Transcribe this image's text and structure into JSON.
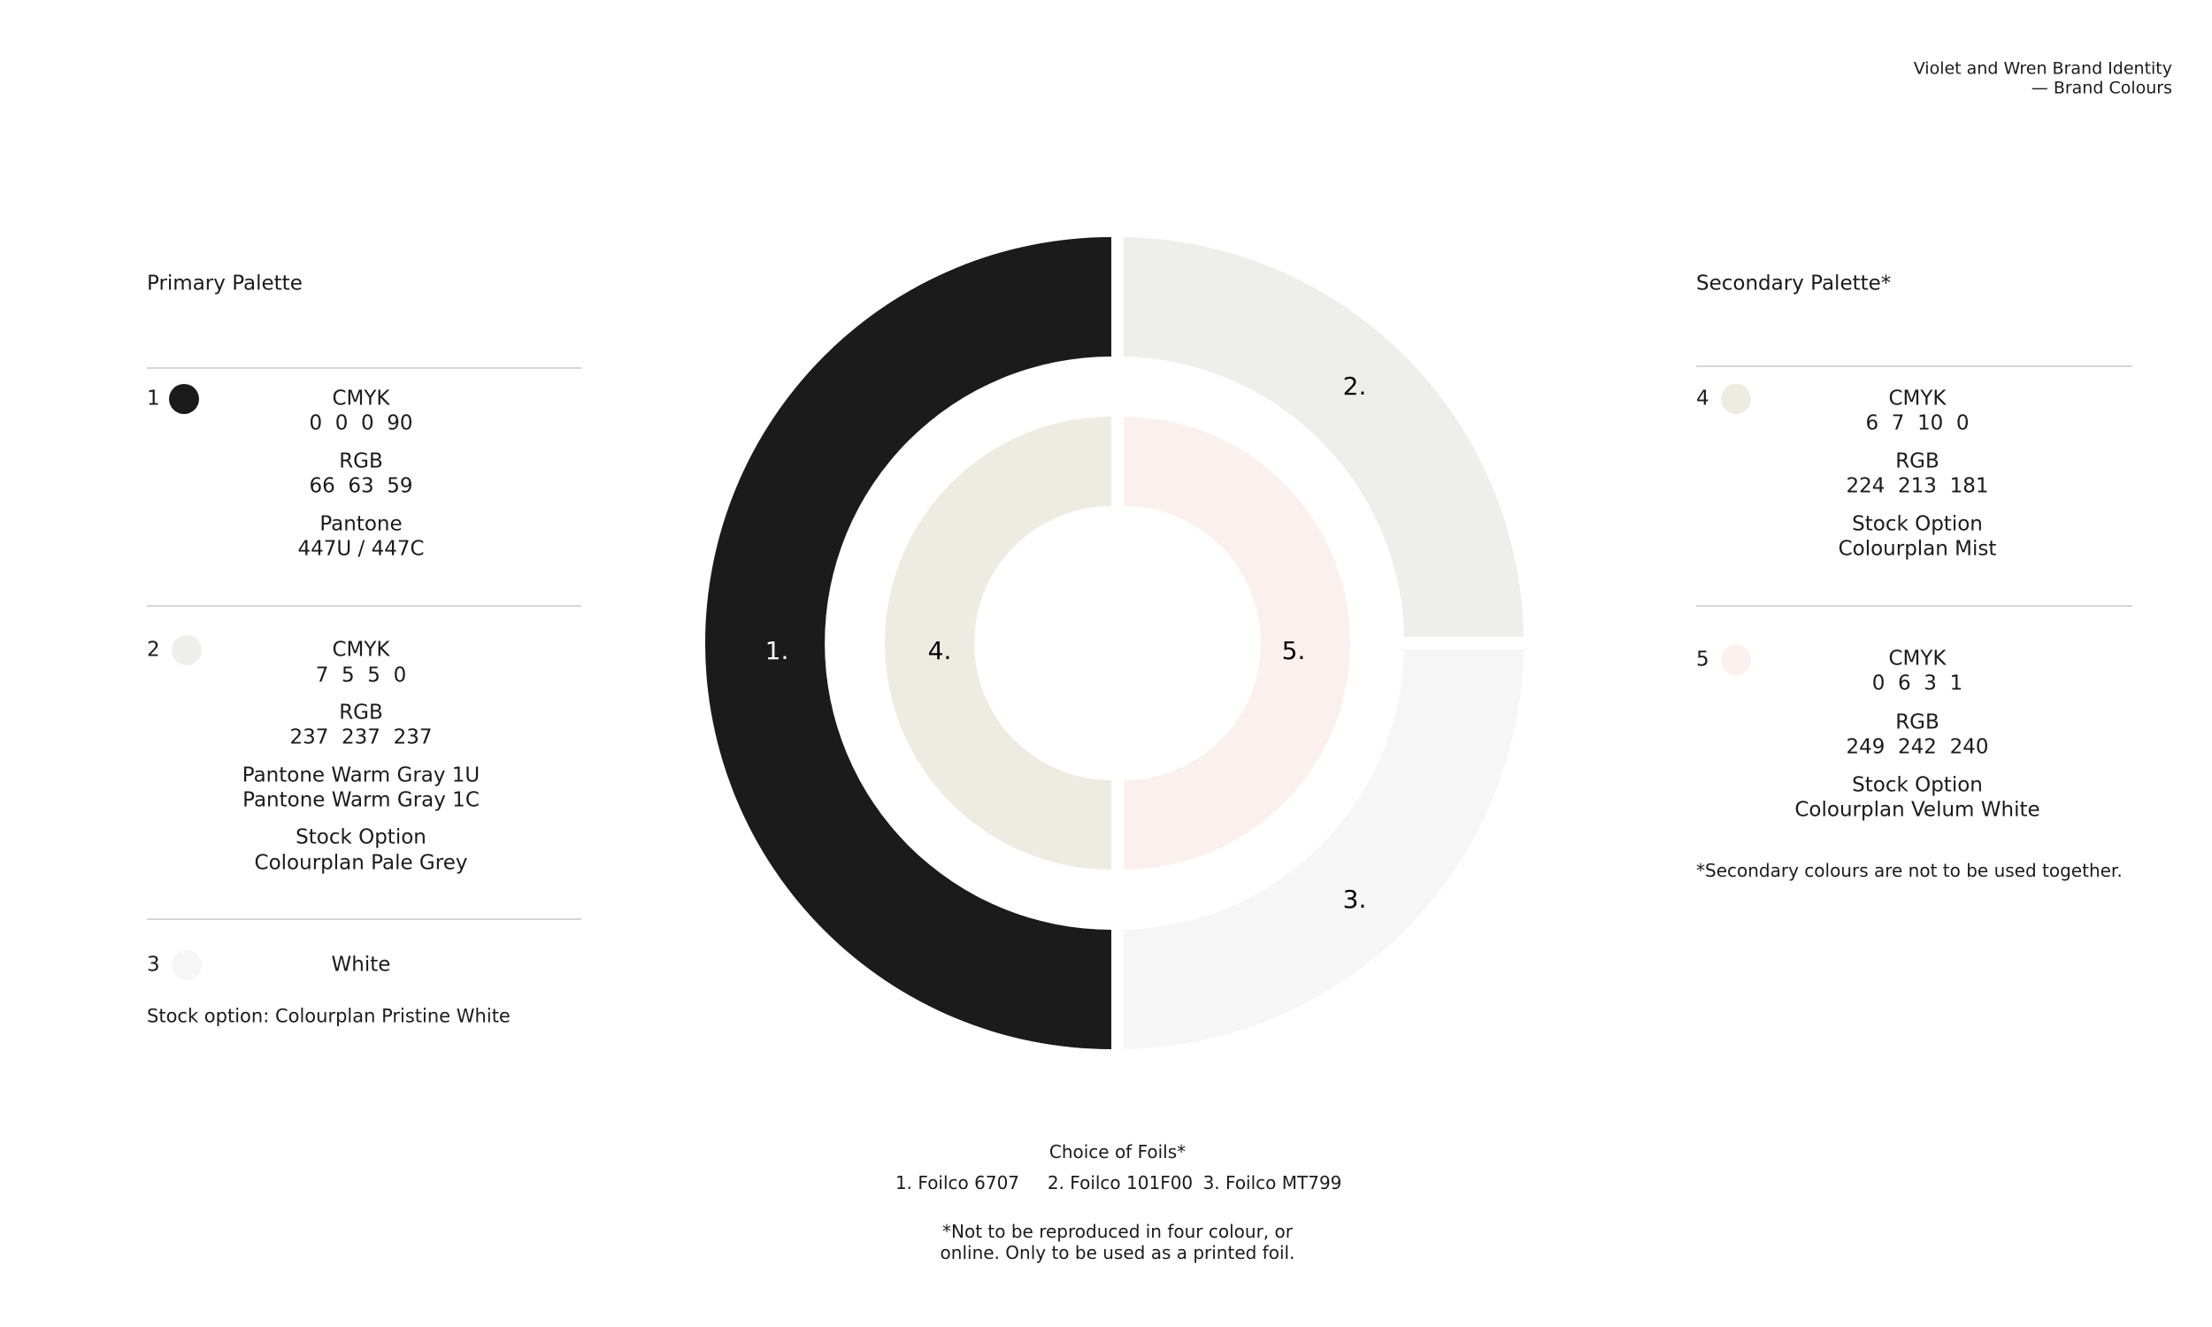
{
  "header": {
    "title": "Violet and Wren Brand Identity",
    "subtitle": "— Brand Colours"
  },
  "primary": {
    "title": "Primary Palette",
    "swatches": [
      {
        "number": "1",
        "lines": [
          "CMYK",
          "0  0  0  90",
          "RGB",
          "66  63  59",
          "Pantone",
          "447U / 447C"
        ]
      },
      {
        "number": "2",
        "lines": [
          "CMYK",
          "7  5  5  0",
          "RGB",
          "237  237  237",
          "Pantone Warm Gray 1U",
          "Pantone Warm Gray 1C",
          "Stock Option",
          "Colourplan Pale Grey"
        ]
      },
      {
        "number": "3",
        "lines": [
          "White"
        ]
      }
    ],
    "note": "Stock option: Colourplan Pristine White"
  },
  "secondary": {
    "title": "Secondary Palette*",
    "swatches": [
      {
        "number": "4",
        "lines": [
          "CMYK",
          "6  7  10  0",
          "RGB",
          "224  213  181",
          "Stock Option",
          "Colourplan Mist"
        ]
      },
      {
        "number": "5",
        "lines": [
          "CMYK",
          "0  6  3  1",
          "RGB",
          "249  242  240",
          "Stock Option",
          "Colourplan Velum White"
        ]
      }
    ],
    "note": "*Secondary colours are not to be used together."
  },
  "wheel": {
    "labels": [
      "1.",
      "2.",
      "3.",
      "4.",
      "5."
    ]
  },
  "foils": {
    "title": "Choice of Foils*",
    "options": [
      "1. Foilco 6707",
      "2. Foilco 101F00",
      "3. Foilco MT799"
    ],
    "note": [
      "*Not to be reproduced in four colour, or",
      "online. Only to be used as a printed foil."
    ]
  }
}
